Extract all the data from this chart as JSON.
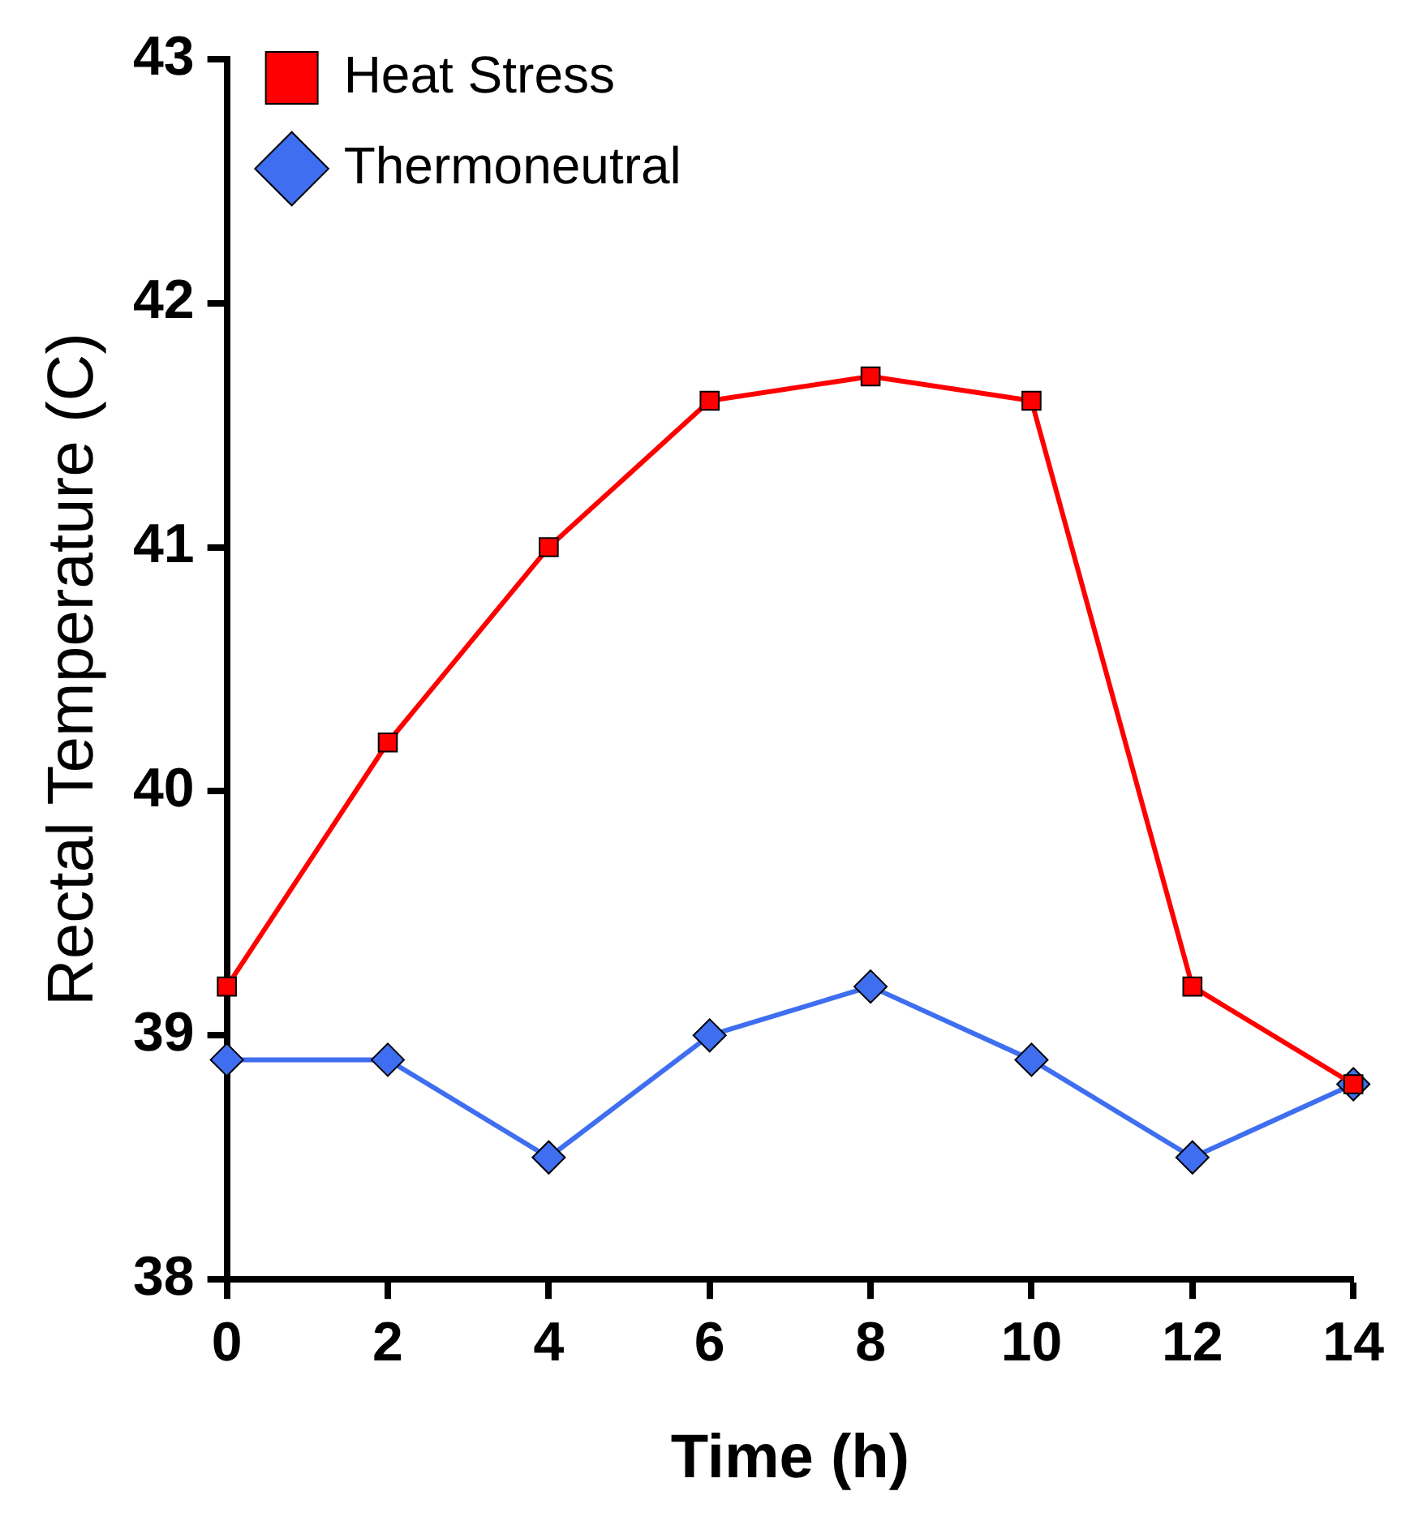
{
  "chart_data": {
    "type": "line",
    "xlabel": "Time (h)",
    "ylabel": "Rectal Temperature (C)",
    "x": [
      0,
      2,
      4,
      6,
      8,
      10,
      12,
      14
    ],
    "series": [
      {
        "name": "Thermoneutral",
        "color": "#3f6ff0",
        "marker": "diamond",
        "values": [
          38.9,
          38.9,
          38.5,
          39.0,
          39.2,
          38.9,
          38.5,
          38.8
        ]
      },
      {
        "name": "Heat Stress",
        "color": "#ff0000",
        "marker": "square",
        "values": [
          39.2,
          40.2,
          41.0,
          41.6,
          41.7,
          41.6,
          39.2,
          38.8
        ]
      }
    ],
    "xlim": [
      0,
      14
    ],
    "xticks": [
      0,
      2,
      4,
      6,
      8,
      10,
      12,
      14
    ],
    "ylim": [
      38,
      43
    ],
    "yticks": [
      38,
      39,
      40,
      41,
      42,
      43
    ],
    "grid": false,
    "legend": "top left",
    "line_style": "solid"
  }
}
